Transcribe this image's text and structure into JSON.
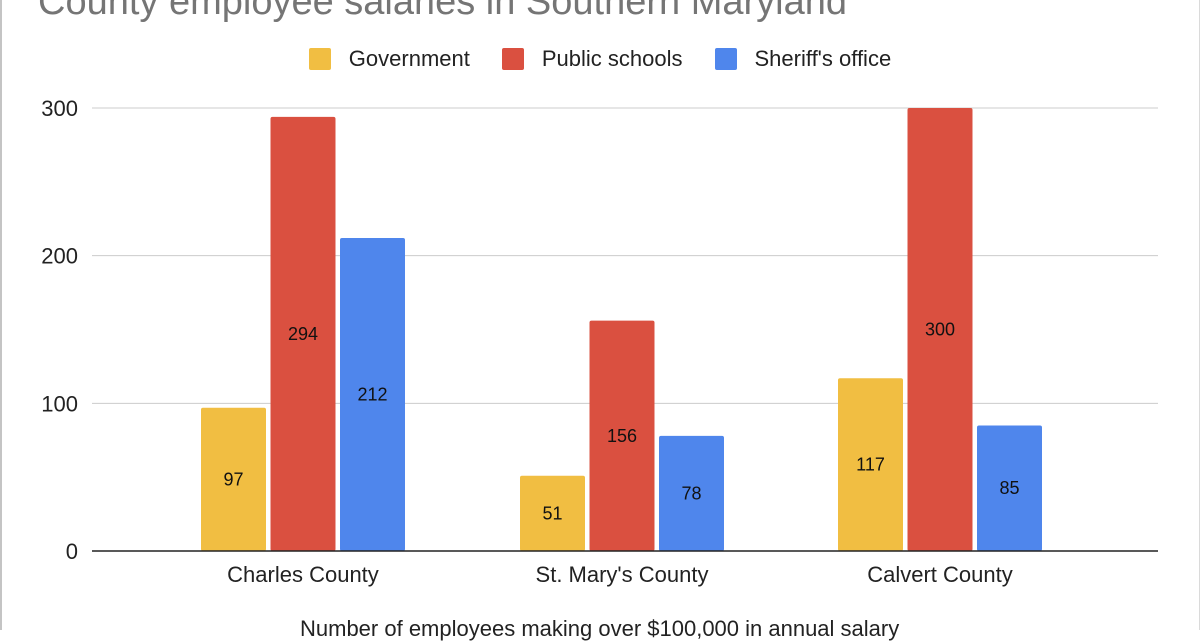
{
  "chart_data": {
    "type": "bar",
    "title": "County employee salaries in Southern Maryland",
    "xlabel": "Number of employees making over $100,000 in annual salary",
    "ylabel": "",
    "categories": [
      "Charles County",
      "St. Mary's County",
      "Calvert County"
    ],
    "series": [
      {
        "name": "Government",
        "color": "#F1BE42",
        "values": [
          97,
          51,
          117
        ]
      },
      {
        "name": "Public schools",
        "color": "#DA5040",
        "values": [
          294,
          156,
          300
        ]
      },
      {
        "name": "Sheriff's office",
        "color": "#4F86EC",
        "values": [
          212,
          78,
          85
        ]
      }
    ],
    "ylim": [
      0,
      300
    ],
    "yticks": [
      "0",
      "100",
      "200",
      "300"
    ],
    "data_labels": [
      [
        "97",
        "51",
        "117"
      ],
      [
        "294",
        "156",
        "300"
      ],
      [
        "212",
        "78",
        "85"
      ]
    ],
    "grid": true,
    "legend_position": "top"
  }
}
